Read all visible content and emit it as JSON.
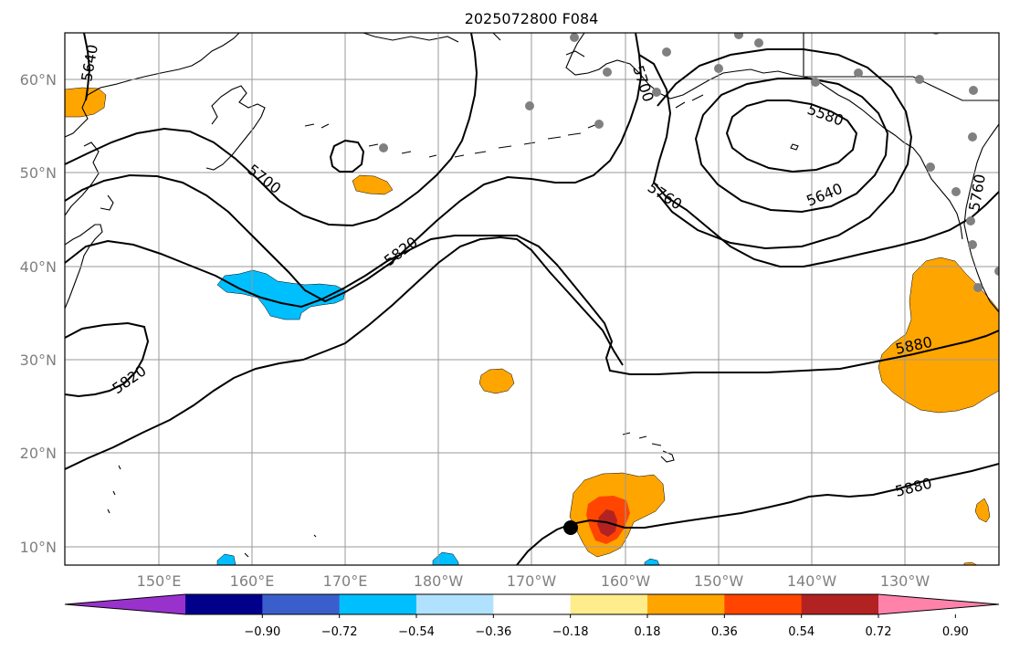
{
  "title": "2025072800 F084",
  "lat_labels": [
    "60°N",
    "50°N",
    "40°N",
    "30°N",
    "20°N",
    "10°N"
  ],
  "lon_labels": [
    "150°E",
    "160°E",
    "170°E",
    "180°W",
    "170°W",
    "160°W",
    "150°W",
    "140°W",
    "130°W"
  ],
  "contour_labels": [
    "5640",
    "5700",
    "5700",
    "5760",
    "5760",
    "5580",
    "5640",
    "5820",
    "5820",
    "5820",
    "5880",
    "5880"
  ],
  "colorbar": {
    "ticks": [
      "−0.90",
      "−0.72",
      "−0.54",
      "−0.36",
      "−0.18",
      "0.18",
      "0.36",
      "0.54",
      "0.72",
      "0.90"
    ],
    "colors": [
      "#9932cc",
      "#00008b",
      "#3a5fcd",
      "#00bfff",
      "#b0e2ff",
      "#ffffff",
      "#ffec8b",
      "#ffa500",
      "#ff4500",
      "#b22222",
      "#ff82ab"
    ]
  },
  "colors": {
    "shade_orange": "#ffa500",
    "shade_red": "#ff4500",
    "shade_darkred": "#b22222",
    "shade_blue": "#00bfff",
    "station_gray": "#808080"
  },
  "storm_marker": "black-dot"
}
